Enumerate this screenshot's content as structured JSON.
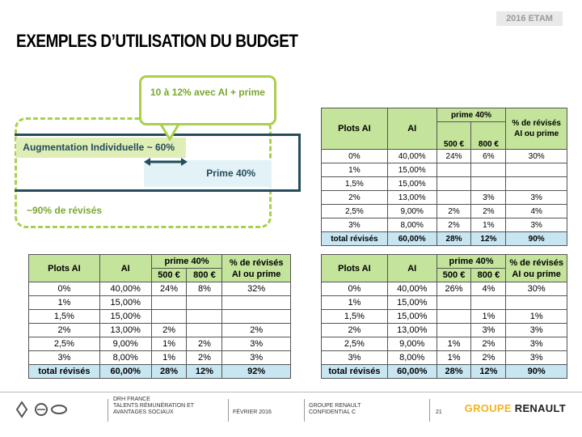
{
  "header": {
    "tag": "2016 ETAM",
    "title": "EXEMPLES D’UTILISATION DU BUDGET"
  },
  "diagram": {
    "callout_text": "10 à 12% avec AI + prime",
    "ai_bar_label": "Augmentation Individuelle ~ 60%",
    "prime_bar_label": "Prime 40%",
    "revises_label": "~90% de révisés"
  },
  "tables": [
    {
      "headers": {
        "plots": "Plots AI",
        "ai": "AI",
        "prime": "prime 40%",
        "p500": "500 €",
        "p800": "800 €",
        "revises": "% de révisés AI ou prime"
      },
      "rows": [
        {
          "plot": "0%",
          "ai": "40,00%",
          "p500": "24%",
          "p800": "6%",
          "rev": "30%"
        },
        {
          "plot": "1%",
          "ai": "15,00%",
          "p500": "",
          "p800": "",
          "rev": ""
        },
        {
          "plot": "1,5%",
          "ai": "15,00%",
          "p500": "",
          "p800": "",
          "rev": ""
        },
        {
          "plot": "2%",
          "ai": "13,00%",
          "p500": "",
          "p800": "3%",
          "rev": "3%"
        },
        {
          "plot": "2,5%",
          "ai": "9,00%",
          "p500": "2%",
          "p800": "2%",
          "rev": "4%"
        },
        {
          "plot": "3%",
          "ai": "8,00%",
          "p500": "2%",
          "p800": "1%",
          "rev": "3%"
        }
      ],
      "total": {
        "label": "total révisés",
        "ai": "60,00%",
        "p500": "28%",
        "p800": "12%",
        "rev": "90%"
      }
    },
    {
      "headers": {
        "plots": "Plots AI",
        "ai": "AI",
        "prime": "prime 40%",
        "p500": "500 €",
        "p800": "800 €",
        "revises": "% de révisés AI ou prime"
      },
      "rows": [
        {
          "plot": "0%",
          "ai": "40,00%",
          "p500": "24%",
          "p800": "8%",
          "rev": "32%"
        },
        {
          "plot": "1%",
          "ai": "15,00%",
          "p500": "",
          "p800": "",
          "rev": ""
        },
        {
          "plot": "1,5%",
          "ai": "15,00%",
          "p500": "",
          "p800": "",
          "rev": ""
        },
        {
          "plot": "2%",
          "ai": "13,00%",
          "p500": "2%",
          "p800": "",
          "rev": "2%"
        },
        {
          "plot": "2,5%",
          "ai": "9,00%",
          "p500": "1%",
          "p800": "2%",
          "rev": "3%"
        },
        {
          "plot": "3%",
          "ai": "8,00%",
          "p500": "1%",
          "p800": "2%",
          "rev": "3%"
        }
      ],
      "total": {
        "label": "total révisés",
        "ai": "60,00%",
        "p500": "28%",
        "p800": "12%",
        "rev": "92%"
      }
    },
    {
      "headers": {
        "plots": "Plots AI",
        "ai": "AI",
        "prime": "prime 40%",
        "p500": "500 €",
        "p800": "800 €",
        "revises": "% de révisés AI ou prime"
      },
      "rows": [
        {
          "plot": "0%",
          "ai": "40,00%",
          "p500": "26%",
          "p800": "4%",
          "rev": "30%"
        },
        {
          "plot": "1%",
          "ai": "15,00%",
          "p500": "",
          "p800": "",
          "rev": ""
        },
        {
          "plot": "1,5%",
          "ai": "15,00%",
          "p500": "",
          "p800": "1%",
          "rev": "1%"
        },
        {
          "plot": "2%",
          "ai": "13,00%",
          "p500": "",
          "p800": "3%",
          "rev": "3%"
        },
        {
          "plot": "2,5%",
          "ai": "9,00%",
          "p500": "1%",
          "p800": "2%",
          "rev": "3%"
        },
        {
          "plot": "3%",
          "ai": "8,00%",
          "p500": "1%",
          "p800": "2%",
          "rev": "3%"
        }
      ],
      "total": {
        "label": "total révisés",
        "ai": "60,00%",
        "p500": "28%",
        "p800": "12%",
        "rev": "90%"
      }
    }
  ],
  "footer": {
    "dept_1": "DRH FRANCE",
    "dept_2": "TALENTS RÉMUNÉRATION ET",
    "dept_3": "AVANTAGES SOCIAUX",
    "date": "FÉVRIER 2016",
    "group_1": "GROUPE RENAULT",
    "group_2": "CONFIDENTIAL C",
    "page": "21",
    "brand_1": "GROUPE",
    "brand_2": "RENAULT"
  },
  "colors": {
    "green": "#a9d04c",
    "navy": "#244c5a",
    "header_green": "#c4e39b",
    "total_blue": "#c8e6f1",
    "brand_yellow": "#f2b31f"
  }
}
